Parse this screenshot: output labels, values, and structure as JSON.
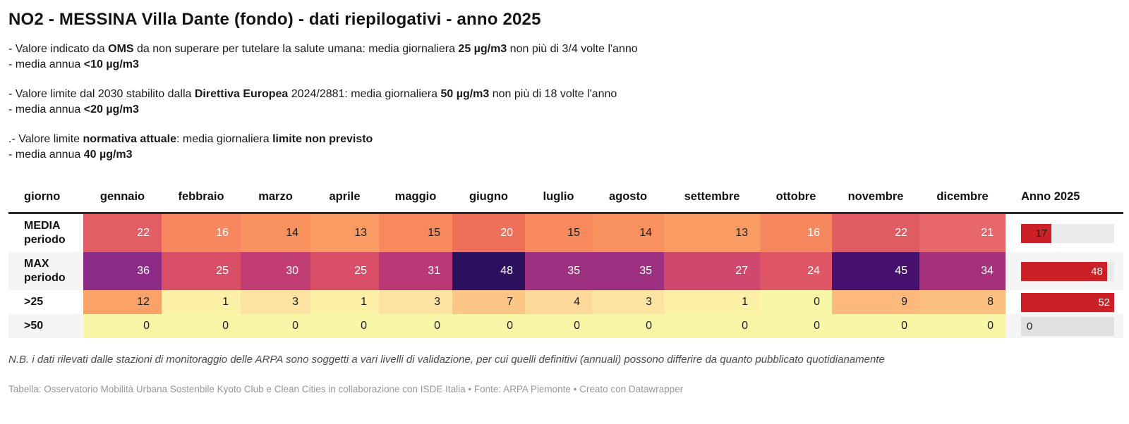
{
  "title": "NO2 - MESSINA Villa Dante (fondo) - dati riepilogativi - anno 2025",
  "notes": [
    {
      "lines": [
        [
          {
            "t": "- Valore indicato da "
          },
          {
            "t": "OMS",
            "b": true
          },
          {
            "t": " da non superare per tutelare la salute umana: media giornaliera "
          },
          {
            "t": "25 µg/m3",
            "b": true
          },
          {
            "t": " non più di 3/4 volte l'anno"
          }
        ],
        [
          {
            "t": "- media annua "
          },
          {
            "t": "<10 µg/m3",
            "b": true
          }
        ]
      ]
    },
    {
      "lines": [
        [
          {
            "t": "- Valore limite dal 2030 stabilito dalla "
          },
          {
            "t": "Direttiva Europea",
            "b": true
          },
          {
            "t": " 2024/2881: media giornaliera "
          },
          {
            "t": "50 µg/m3",
            "b": true
          },
          {
            "t": " non più di 18 volte l'anno"
          }
        ],
        [
          {
            "t": "- media annua "
          },
          {
            "t": "<20 µg/m3",
            "b": true
          }
        ]
      ]
    },
    {
      "lines": [
        [
          {
            "t": ".- Valore limite "
          },
          {
            "t": "normativa attuale",
            "b": true
          },
          {
            "t": ": media giornaliera "
          },
          {
            "t": "limite non previsto",
            "b": true
          }
        ],
        [
          {
            "t": "- media annua "
          },
          {
            "t": "40 µg/m3",
            "b": true
          }
        ]
      ]
    }
  ],
  "table": {
    "columns": [
      {
        "key": "giorno",
        "label": "giorno"
      },
      {
        "key": "gennaio",
        "label": "gennaio"
      },
      {
        "key": "febbraio",
        "label": "febbraio"
      },
      {
        "key": "marzo",
        "label": "marzo"
      },
      {
        "key": "aprile",
        "label": "aprile"
      },
      {
        "key": "maggio",
        "label": "maggio"
      },
      {
        "key": "giugno",
        "label": "giugno"
      },
      {
        "key": "luglio",
        "label": "luglio"
      },
      {
        "key": "agosto",
        "label": "agosto"
      },
      {
        "key": "settembre",
        "label": "settembre"
      },
      {
        "key": "ottobre",
        "label": "ottobre"
      },
      {
        "key": "novembre",
        "label": "novembre"
      },
      {
        "key": "dicembre",
        "label": "dicembre"
      },
      {
        "key": "anno",
        "label": "Anno 2025"
      }
    ],
    "rows": [
      {
        "key": "media",
        "label_lines": [
          "MEDIA",
          "periodo"
        ],
        "tall": true,
        "stripe": "#ffffff",
        "cells": [
          {
            "v": "22",
            "bg": "#e25e63",
            "fg": "#ffffff"
          },
          {
            "v": "16",
            "bg": "#f6875e",
            "fg": "#ffffff"
          },
          {
            "v": "14",
            "bg": "#f9915e",
            "fg": "#1d1d1d"
          },
          {
            "v": "13",
            "bg": "#fa9b63",
            "fg": "#1d1d1d"
          },
          {
            "v": "15",
            "bg": "#f78a5d",
            "fg": "#1d1d1d"
          },
          {
            "v": "20",
            "bg": "#ee7058",
            "fg": "#ffffff"
          },
          {
            "v": "15",
            "bg": "#f78a5d",
            "fg": "#1d1d1d"
          },
          {
            "v": "14",
            "bg": "#f9915e",
            "fg": "#1d1d1d"
          },
          {
            "v": "13",
            "bg": "#fa9b63",
            "fg": "#1d1d1d"
          },
          {
            "v": "16",
            "bg": "#f6875e",
            "fg": "#ffffff"
          },
          {
            "v": "22",
            "bg": "#e15b62",
            "fg": "#ffffff"
          },
          {
            "v": "21",
            "bg": "#e8676a",
            "fg": "#ffffff"
          }
        ],
        "anno": {
          "v": "17",
          "pct": 32.7,
          "fg": "#1d1d1d",
          "track": "#eaeaea"
        }
      },
      {
        "key": "max",
        "label_lines": [
          "MAX",
          "periodo"
        ],
        "tall": true,
        "stripe": "#f5f5f5",
        "cells": [
          {
            "v": "36",
            "bg": "#8c2c86",
            "fg": "#ffffff"
          },
          {
            "v": "25",
            "bg": "#da4f68",
            "fg": "#ffffff"
          },
          {
            "v": "30",
            "bg": "#c23d74",
            "fg": "#ffffff"
          },
          {
            "v": "25",
            "bg": "#da4f68",
            "fg": "#ffffff"
          },
          {
            "v": "31",
            "bg": "#bb3877",
            "fg": "#ffffff"
          },
          {
            "v": "48",
            "bg": "#2c115f",
            "fg": "#ffffff"
          },
          {
            "v": "35",
            "bg": "#9d3080",
            "fg": "#ffffff"
          },
          {
            "v": "35",
            "bg": "#9d3080",
            "fg": "#ffffff"
          },
          {
            "v": "27",
            "bg": "#d0486e",
            "fg": "#ffffff"
          },
          {
            "v": "24",
            "bg": "#df5765",
            "fg": "#ffffff"
          },
          {
            "v": "45",
            "bg": "#45106e",
            "fg": "#ffffff"
          },
          {
            "v": "34",
            "bg": "#a43179",
            "fg": "#ffffff"
          }
        ],
        "anno": {
          "v": "48",
          "pct": 92.3,
          "fg": "#ffffff",
          "track": "#eaeaea"
        }
      },
      {
        "key": "gt25",
        "label_lines": [
          ">25"
        ],
        "tall": false,
        "stripe": "#ffffff",
        "cells": [
          {
            "v": "12",
            "bg": "#fba269",
            "fg": "#1d1d1d"
          },
          {
            "v": "1",
            "bg": "#fbf0a5",
            "fg": "#1d1d1d"
          },
          {
            "v": "3",
            "bg": "#fce3a1",
            "fg": "#1d1d1d"
          },
          {
            "v": "1",
            "bg": "#fbf0a5",
            "fg": "#1d1d1d"
          },
          {
            "v": "3",
            "bg": "#fce3a1",
            "fg": "#1d1d1d"
          },
          {
            "v": "7",
            "bg": "#fdc687",
            "fg": "#1d1d1d"
          },
          {
            "v": "4",
            "bg": "#fcd99a",
            "fg": "#1d1d1d"
          },
          {
            "v": "3",
            "bg": "#fce3a1",
            "fg": "#1d1d1d"
          },
          {
            "v": "1",
            "bg": "#fbf0a5",
            "fg": "#1d1d1d"
          },
          {
            "v": "0",
            "bg": "#f8f6a7",
            "fg": "#1d1d1d"
          },
          {
            "v": "9",
            "bg": "#fcb97b",
            "fg": "#1d1d1d"
          },
          {
            "v": "8",
            "bg": "#fdbf80",
            "fg": "#1d1d1d"
          }
        ],
        "anno": {
          "v": "52",
          "pct": 100,
          "fg": "#ffffff",
          "track": "#eaeaea"
        }
      },
      {
        "key": "gt50",
        "label_lines": [
          ">50"
        ],
        "tall": false,
        "stripe": "#f5f5f5",
        "cells": [
          {
            "v": "0",
            "bg": "#f8f6a7",
            "fg": "#1d1d1d"
          },
          {
            "v": "0",
            "bg": "#f8f6a7",
            "fg": "#1d1d1d"
          },
          {
            "v": "0",
            "bg": "#f8f6a7",
            "fg": "#1d1d1d"
          },
          {
            "v": "0",
            "bg": "#f8f6a7",
            "fg": "#1d1d1d"
          },
          {
            "v": "0",
            "bg": "#f8f6a7",
            "fg": "#1d1d1d"
          },
          {
            "v": "0",
            "bg": "#f8f6a7",
            "fg": "#1d1d1d"
          },
          {
            "v": "0",
            "bg": "#f8f6a7",
            "fg": "#1d1d1d"
          },
          {
            "v": "0",
            "bg": "#f8f6a7",
            "fg": "#1d1d1d"
          },
          {
            "v": "0",
            "bg": "#f8f6a7",
            "fg": "#1d1d1d"
          },
          {
            "v": "0",
            "bg": "#f8f6a7",
            "fg": "#1d1d1d"
          },
          {
            "v": "0",
            "bg": "#f8f6a7",
            "fg": "#1d1d1d"
          },
          {
            "v": "0",
            "bg": "#f8f6a7",
            "fg": "#1d1d1d"
          }
        ],
        "anno": {
          "v": "0",
          "pct": 0,
          "fg": "#1d1d1d",
          "track": "#e0e0e0"
        }
      }
    ]
  },
  "colors": {
    "bar_fill": "#cb2026",
    "header_border": "#2b2b2b"
  },
  "footnote": "N.B. i dati rilevati dalle stazioni di monitoraggio delle ARPA sono soggetti a vari livelli di validazione, per cui quelli definitivi (annuali) possono differire da quanto pubblicato quotidianamente",
  "attribution": "Tabella: Osservatorio Mobilità Urbana Sostenbile Kyoto Club e Clean Cities in collaborazione con ISDE Italia • Fonte: ARPA Piemonte • Creato con Datawrapper",
  "chart_data": {
    "type": "heatmap",
    "title": "NO2 - MESSINA Villa Dante (fondo) - dati riepilogativi - anno 2025",
    "categories": [
      "gennaio",
      "febbraio",
      "marzo",
      "aprile",
      "maggio",
      "giugno",
      "luglio",
      "agosto",
      "settembre",
      "ottobre",
      "novembre",
      "dicembre"
    ],
    "series": [
      {
        "name": "MEDIA periodo",
        "values": [
          22,
          16,
          14,
          13,
          15,
          20,
          15,
          14,
          13,
          16,
          22,
          21
        ],
        "anno_2025": 17
      },
      {
        "name": "MAX periodo",
        "values": [
          36,
          25,
          30,
          25,
          31,
          48,
          35,
          35,
          27,
          24,
          45,
          34
        ],
        "anno_2025": 48
      },
      {
        "name": ">25",
        "values": [
          12,
          1,
          3,
          1,
          3,
          7,
          4,
          3,
          1,
          0,
          9,
          8
        ],
        "anno_2025": 52
      },
      {
        "name": ">50",
        "values": [
          0,
          0,
          0,
          0,
          0,
          0,
          0,
          0,
          0,
          0,
          0,
          0
        ],
        "anno_2025": 0
      }
    ],
    "anno_bar_scale_max": 52,
    "legend": "none",
    "notes": "cells colored by value on a yellow-orange-red-purple scale; Anno 2025 column rendered as red bars on gray tracks"
  }
}
